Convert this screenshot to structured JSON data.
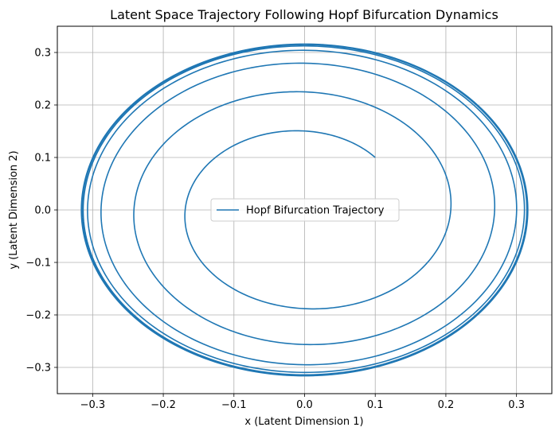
{
  "chart_data": {
    "type": "line",
    "title": "Latent Space Trajectory Following Hopf Bifurcation Dynamics",
    "xlabel": "x (Latent Dimension 1)",
    "ylabel": "y (Latent Dimension 2)",
    "xlim": [
      -0.35,
      0.35
    ],
    "ylim": [
      -0.35,
      0.35
    ],
    "xticks": [
      -0.3,
      -0.2,
      -0.1,
      0.0,
      0.1,
      0.2,
      0.3
    ],
    "yticks": [
      -0.3,
      -0.2,
      -0.1,
      0.0,
      0.1,
      0.2,
      0.3
    ],
    "grid": true,
    "legend_position": "center",
    "series": [
      {
        "name": "Hopf Bifurcation Trajectory",
        "color": "#1f77b4",
        "start": [
          0.1,
          0.1
        ],
        "limit_cycle_radius": 0.316,
        "turns": 12
      }
    ]
  }
}
